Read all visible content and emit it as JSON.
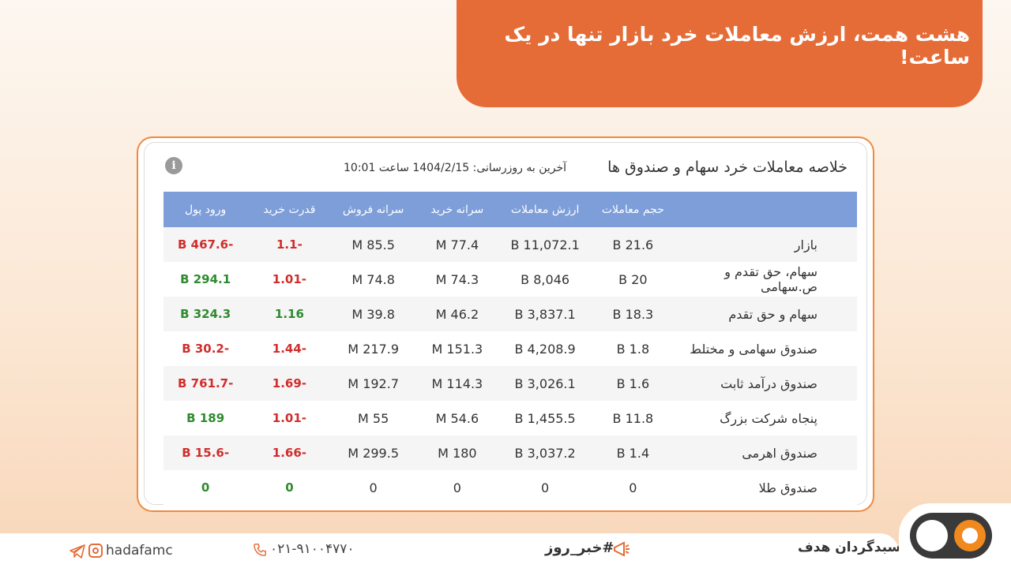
{
  "headline": "هشت همت، ارزش معاملات خرد بازار تنها در یک ساعت!",
  "table": {
    "title": "خلاصه معاملات خرد سهام و صندوق ها",
    "update_text": "آخرین به روزرسانی: 1404/2/15 ساعت 10:01",
    "headers": {
      "label": "",
      "volume": "حجم معاملات",
      "value": "ارزش معاملات",
      "buy_per_capita": "سرانه خرید",
      "sell_per_capita": "سرانه فروش",
      "buy_power": "قدرت خرید",
      "money_flow": "ورود پول"
    },
    "rows": [
      {
        "label": "بازار",
        "volume": "21.6 B",
        "value": "11,072.1 B",
        "buy_per_capita": "77.4 M",
        "sell_per_capita": "85.5 M",
        "buy_power": "-1.1",
        "money_flow": "-467.6 B"
      },
      {
        "label": "سهام، حق تقدم و ص.سهامی",
        "volume": "20 B",
        "value": "8,046 B",
        "buy_per_capita": "74.3 M",
        "sell_per_capita": "74.8 M",
        "buy_power": "-1.01",
        "money_flow": "294.1 B"
      },
      {
        "label": "سهام و حق تقدم",
        "volume": "18.3 B",
        "value": "3,837.1 B",
        "buy_per_capita": "46.2 M",
        "sell_per_capita": "39.8 M",
        "buy_power": "1.16",
        "money_flow": "324.3 B"
      },
      {
        "label": "صندوق سهامی و مختلط",
        "volume": "1.8 B",
        "value": "4,208.9 B",
        "buy_per_capita": "151.3 M",
        "sell_per_capita": "217.9 M",
        "buy_power": "-1.44",
        "money_flow": "-30.2 B"
      },
      {
        "label": "صندوق درآمد ثابت",
        "volume": "1.6 B",
        "value": "3,026.1 B",
        "buy_per_capita": "114.3 M",
        "sell_per_capita": "192.7 M",
        "buy_power": "-1.69",
        "money_flow": "-761.7 B"
      },
      {
        "label": "پنجاه شرکت بزرگ",
        "volume": "11.8 B",
        "value": "1,455.5 B",
        "buy_per_capita": "54.6 M",
        "sell_per_capita": "55 M",
        "buy_power": "-1.01",
        "money_flow": "189 B"
      },
      {
        "label": "صندوق اهرمی",
        "volume": "1.4 B",
        "value": "3,037.2 B",
        "buy_per_capita": "180 M",
        "sell_per_capita": "299.5 M",
        "buy_power": "-1.66",
        "money_flow": "-15.6 B"
      },
      {
        "label": "صندوق طلا",
        "volume": "0",
        "value": "0",
        "buy_per_capita": "0",
        "sell_per_capita": "0",
        "buy_power": "0",
        "money_flow": "0"
      }
    ]
  },
  "footer": {
    "brand": "سبدگردان هدف",
    "hashtag": "#خبر_روز",
    "phone": "۰۲۱-۹۱۰۰۴۷۷۰",
    "social_handle": "hadafamc"
  },
  "colors": {
    "accent": "#e56c37",
    "header_bg": "#7d9ed9",
    "positive": "#2f8a2f",
    "negative": "#d12d2d"
  }
}
